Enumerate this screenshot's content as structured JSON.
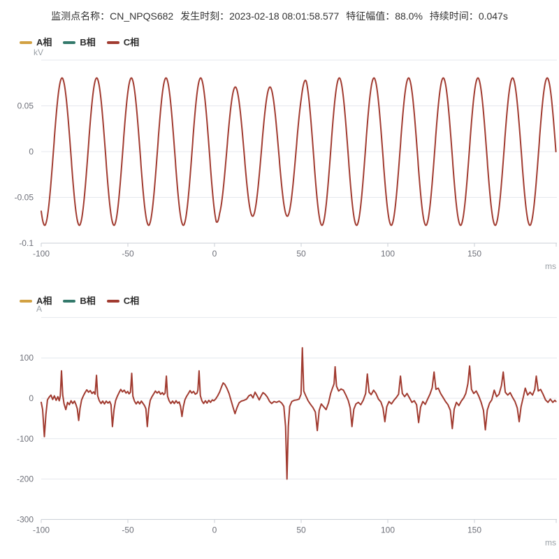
{
  "header": {
    "fields": [
      {
        "label": "监测点名称：",
        "value": "CN_NPQS682"
      },
      {
        "label": "发生时刻：",
        "value": "2023-02-18 08:01:58.577"
      },
      {
        "label": "特征幅值：",
        "value": "88.0%"
      },
      {
        "label": "持续时间：",
        "value": "0.047s"
      }
    ]
  },
  "colors": {
    "phase_a": "#D2A142",
    "phase_b": "#33796B",
    "phase_c": "#A13B30",
    "title_text": "#333333",
    "legend_text": "#2B2B2B",
    "tick_label": "#6E7079",
    "unit_label": "#9AA0A6",
    "grid": "#E4E7ED",
    "axis": "#C9CDD4"
  },
  "legend": {
    "items": [
      {
        "label": "A相",
        "color_key": "phase_a"
      },
      {
        "label": "B相",
        "color_key": "phase_b"
      },
      {
        "label": "C相",
        "color_key": "phase_c"
      }
    ]
  },
  "chart_data": [
    {
      "id": "voltage",
      "type": "line",
      "unit_label": "kV",
      "xlabel": "ms",
      "visible_series": "C相",
      "x_range": [
        -100,
        197
      ],
      "y_range": [
        -0.1,
        0.1
      ],
      "x_ticks": [
        -100,
        -50,
        0,
        50,
        100,
        150
      ],
      "y_ticks": [
        0.05,
        0,
        -0.05,
        -0.1
      ],
      "grid_levels": [
        0.1,
        0.05,
        0,
        -0.05
      ],
      "axis_level": -0.1,
      "waveform": {
        "kind": "sine",
        "period_ms": 20,
        "trough_at_ms": -98,
        "amplitude_kv": 0.0805,
        "sag": {
          "start_ms": 1,
          "full_ms": 3,
          "end_ms": 50,
          "recover_ms": 53,
          "amplitude_kv": 0.0706
        }
      }
    },
    {
      "id": "current",
      "type": "line",
      "unit_label": "A",
      "xlabel": "ms",
      "visible_series": "C相",
      "x_range": [
        -100,
        197
      ],
      "y_range": [
        -300,
        200
      ],
      "x_ticks": [
        -100,
        -50,
        0,
        50,
        100,
        150
      ],
      "y_ticks": [
        100,
        0,
        -100,
        -200,
        -300
      ],
      "grid_levels": [
        200,
        100,
        0,
        -100,
        -200
      ],
      "axis_level": -300,
      "points": [
        [
          -100,
          -10
        ],
        [
          -99.2,
          -28
        ],
        [
          -98.2,
          -95
        ],
        [
          -97.3,
          -40
        ],
        [
          -96.4,
          -4
        ],
        [
          -95.4,
          3
        ],
        [
          -94.4,
          8
        ],
        [
          -93.4,
          -3
        ],
        [
          -92.4,
          6
        ],
        [
          -91.4,
          -5
        ],
        [
          -90.4,
          4
        ],
        [
          -89.6,
          -6
        ],
        [
          -89,
          6
        ],
        [
          -88.3,
          68
        ],
        [
          -87.6,
          8
        ],
        [
          -86.8,
          -14
        ],
        [
          -85.8,
          -28
        ],
        [
          -84.8,
          -10
        ],
        [
          -83.8,
          -16
        ],
        [
          -82.8,
          -6
        ],
        [
          -81.8,
          -13
        ],
        [
          -80.8,
          -7
        ],
        [
          -80,
          -15
        ],
        [
          -79.2,
          -26
        ],
        [
          -78.4,
          -55
        ],
        [
          -77.6,
          -24
        ],
        [
          -76.7,
          -4
        ],
        [
          -75.7,
          6
        ],
        [
          -74.7,
          14
        ],
        [
          -73.7,
          21
        ],
        [
          -72.7,
          15
        ],
        [
          -71.7,
          19
        ],
        [
          -70.7,
          12
        ],
        [
          -69.7,
          16
        ],
        [
          -68.9,
          10
        ],
        [
          -68.1,
          57
        ],
        [
          -67.4,
          6
        ],
        [
          -66.5,
          -6
        ],
        [
          -65.5,
          -13
        ],
        [
          -64.5,
          -7
        ],
        [
          -63.5,
          -14
        ],
        [
          -62.5,
          -7
        ],
        [
          -61.5,
          -12
        ],
        [
          -60.5,
          -8
        ],
        [
          -59.7,
          -16
        ],
        [
          -58.9,
          -70
        ],
        [
          -58,
          -28
        ],
        [
          -57.1,
          -6
        ],
        [
          -56.1,
          5
        ],
        [
          -55.1,
          14
        ],
        [
          -54.1,
          22
        ],
        [
          -53.1,
          16
        ],
        [
          -52.1,
          20
        ],
        [
          -51.1,
          13
        ],
        [
          -50.1,
          17
        ],
        [
          -49.3,
          11
        ],
        [
          -48.5,
          15
        ],
        [
          -47.8,
          62
        ],
        [
          -47.1,
          5
        ],
        [
          -46.2,
          -7
        ],
        [
          -45.2,
          -14
        ],
        [
          -44.2,
          -8
        ],
        [
          -43.2,
          -14
        ],
        [
          -42.2,
          -7
        ],
        [
          -41.2,
          -13
        ],
        [
          -40.4,
          -18
        ],
        [
          -39.6,
          -26
        ],
        [
          -38.8,
          -70
        ],
        [
          -38,
          -27
        ],
        [
          -37.1,
          -5
        ],
        [
          -36.1,
          4
        ],
        [
          -35.1,
          11
        ],
        [
          -34.1,
          18
        ],
        [
          -33.1,
          13
        ],
        [
          -32.1,
          17
        ],
        [
          -31.1,
          10
        ],
        [
          -30.1,
          14
        ],
        [
          -29.3,
          9
        ],
        [
          -28.5,
          13
        ],
        [
          -27.8,
          55
        ],
        [
          -27.1,
          5
        ],
        [
          -26.2,
          -6
        ],
        [
          -25.2,
          -13
        ],
        [
          -24.2,
          -7
        ],
        [
          -23.2,
          -13
        ],
        [
          -22.2,
          -6
        ],
        [
          -21.2,
          -12
        ],
        [
          -20.4,
          -9
        ],
        [
          -19.6,
          -20
        ],
        [
          -18.8,
          -45
        ],
        [
          -18,
          -21
        ],
        [
          -17.1,
          -4
        ],
        [
          -16.1,
          5
        ],
        [
          -15.1,
          12
        ],
        [
          -14.1,
          19
        ],
        [
          -13.1,
          13
        ],
        [
          -12.1,
          17
        ],
        [
          -11.1,
          10
        ],
        [
          -10.1,
          13
        ],
        [
          -9.6,
          20
        ],
        [
          -8.9,
          68
        ],
        [
          -8.2,
          7
        ],
        [
          -7.3,
          -6
        ],
        [
          -6.3,
          -13
        ],
        [
          -5.3,
          -6
        ],
        [
          -4.3,
          -12
        ],
        [
          -3.3,
          -5
        ],
        [
          -2.3,
          -10
        ],
        [
          -1.3,
          -4
        ],
        [
          -0.4,
          -6
        ],
        [
          0.6,
          -2
        ],
        [
          1.8,
          6
        ],
        [
          3,
          16
        ],
        [
          4.2,
          30
        ],
        [
          5,
          38
        ],
        [
          6,
          34
        ],
        [
          7.2,
          24
        ],
        [
          8.4,
          12
        ],
        [
          9.6,
          -6
        ],
        [
          10.8,
          -24
        ],
        [
          11.8,
          -38
        ],
        [
          12.9,
          -24
        ],
        [
          14.2,
          -11
        ],
        [
          15.5,
          -7
        ],
        [
          17,
          -5
        ],
        [
          18.5,
          -2
        ],
        [
          19.8,
          6
        ],
        [
          21,
          9
        ],
        [
          22.2,
          1
        ],
        [
          23.4,
          15
        ],
        [
          24.6,
          6
        ],
        [
          25.8,
          -4
        ],
        [
          27,
          7
        ],
        [
          28,
          14
        ],
        [
          29.2,
          10
        ],
        [
          30.5,
          3
        ],
        [
          31.8,
          -8
        ],
        [
          33,
          -13
        ],
        [
          34.3,
          -8
        ],
        [
          35.8,
          -10
        ],
        [
          37.3,
          -7
        ],
        [
          38.8,
          -12
        ],
        [
          40,
          -20
        ],
        [
          41,
          -70
        ],
        [
          41.8,
          -200
        ],
        [
          42.6,
          -70
        ],
        [
          43.4,
          -20
        ],
        [
          44.6,
          -8
        ],
        [
          46,
          -5
        ],
        [
          47.4,
          -4
        ],
        [
          48.8,
          -2
        ],
        [
          49.9,
          10
        ],
        [
          50.7,
          125
        ],
        [
          51.5,
          18
        ],
        [
          52.6,
          7
        ],
        [
          54,
          -6
        ],
        [
          55.4,
          -15
        ],
        [
          56.8,
          -23
        ],
        [
          58.2,
          -34
        ],
        [
          59.3,
          -80
        ],
        [
          60.4,
          -30
        ],
        [
          61.6,
          -14
        ],
        [
          63,
          -21
        ],
        [
          64.4,
          -28
        ],
        [
          65.8,
          -11
        ],
        [
          67,
          12
        ],
        [
          68,
          24
        ],
        [
          69,
          36
        ],
        [
          69.6,
          78
        ],
        [
          70.4,
          30
        ],
        [
          71.6,
          18
        ],
        [
          73,
          23
        ],
        [
          74.4,
          20
        ],
        [
          75.8,
          8
        ],
        [
          77.2,
          -6
        ],
        [
          78.3,
          -24
        ],
        [
          79.3,
          -70
        ],
        [
          80.4,
          -27
        ],
        [
          81.6,
          -14
        ],
        [
          83,
          -10
        ],
        [
          84.4,
          -16
        ],
        [
          85.8,
          -5
        ],
        [
          87.2,
          12
        ],
        [
          88.2,
          60
        ],
        [
          89.2,
          15
        ],
        [
          90.4,
          9
        ],
        [
          91.8,
          20
        ],
        [
          93.2,
          12
        ],
        [
          94.6,
          -2
        ],
        [
          96,
          -9
        ],
        [
          97.2,
          -24
        ],
        [
          98.3,
          -58
        ],
        [
          99.4,
          -21
        ],
        [
          100.7,
          -8
        ],
        [
          102.1,
          -14
        ],
        [
          103.5,
          -5
        ],
        [
          104.9,
          2
        ],
        [
          106.2,
          10
        ],
        [
          107.3,
          55
        ],
        [
          108.4,
          12
        ],
        [
          109.7,
          4
        ],
        [
          111.1,
          12
        ],
        [
          112.5,
          1
        ],
        [
          113.9,
          -10
        ],
        [
          115.3,
          -6
        ],
        [
          116.6,
          -16
        ],
        [
          117.8,
          -60
        ],
        [
          118.9,
          -22
        ],
        [
          120.2,
          -8
        ],
        [
          121.6,
          -15
        ],
        [
          123,
          -2
        ],
        [
          124.3,
          10
        ],
        [
          125.6,
          26
        ],
        [
          126.7,
          65
        ],
        [
          127.8,
          22
        ],
        [
          129.1,
          25
        ],
        [
          130.5,
          12
        ],
        [
          131.9,
          2
        ],
        [
          133.3,
          -8
        ],
        [
          134.7,
          -16
        ],
        [
          136.1,
          -30
        ],
        [
          137.2,
          -75
        ],
        [
          138.3,
          -27
        ],
        [
          139.6,
          -10
        ],
        [
          141,
          -18
        ],
        [
          142.4,
          -7
        ],
        [
          143.8,
          1
        ],
        [
          145,
          12
        ],
        [
          146.2,
          36
        ],
        [
          147.2,
          80
        ],
        [
          148.3,
          22
        ],
        [
          149.6,
          12
        ],
        [
          151,
          18
        ],
        [
          152.4,
          6
        ],
        [
          153.8,
          -9
        ],
        [
          155.2,
          -30
        ],
        [
          156.3,
          -78
        ],
        [
          157.4,
          -29
        ],
        [
          158.7,
          -12
        ],
        [
          160,
          -4
        ],
        [
          161.4,
          20
        ],
        [
          162.8,
          4
        ],
        [
          164.2,
          10
        ],
        [
          165.6,
          32
        ],
        [
          166.6,
          65
        ],
        [
          167.8,
          15
        ],
        [
          169.2,
          8
        ],
        [
          170.6,
          14
        ],
        [
          172,
          2
        ],
        [
          173.4,
          -8
        ],
        [
          174.7,
          -24
        ],
        [
          175.8,
          -58
        ],
        [
          176.9,
          -21
        ],
        [
          178.2,
          3
        ],
        [
          179.3,
          25
        ],
        [
          180.7,
          8
        ],
        [
          182.1,
          15
        ],
        [
          183.5,
          8
        ],
        [
          184.8,
          22
        ],
        [
          185.7,
          55
        ],
        [
          186.8,
          18
        ],
        [
          188.2,
          22
        ],
        [
          189.6,
          10
        ],
        [
          191,
          -4
        ],
        [
          192.4,
          -10
        ],
        [
          193.8,
          -2
        ],
        [
          195.2,
          -10
        ],
        [
          196.4,
          -5
        ],
        [
          197,
          -8
        ]
      ]
    }
  ]
}
